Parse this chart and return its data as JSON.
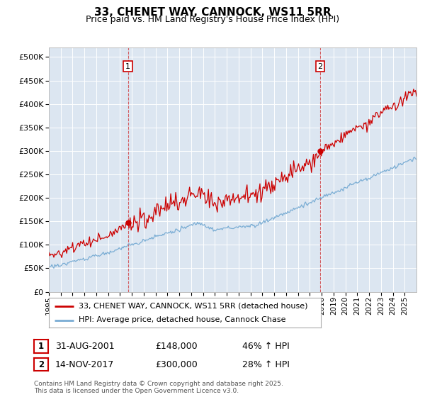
{
  "title": "33, CHENET WAY, CANNOCK, WS11 5RR",
  "subtitle": "Price paid vs. HM Land Registry's House Price Index (HPI)",
  "legend_line1": "33, CHENET WAY, CANNOCK, WS11 5RR (detached house)",
  "legend_line2": "HPI: Average price, detached house, Cannock Chase",
  "annotation1_date": "31-AUG-2001",
  "annotation1_price": "£148,000",
  "annotation1_hpi": "46% ↑ HPI",
  "annotation2_date": "14-NOV-2017",
  "annotation2_price": "£300,000",
  "annotation2_hpi": "28% ↑ HPI",
  "footer": "Contains HM Land Registry data © Crown copyright and database right 2025.\nThis data is licensed under the Open Government Licence v3.0.",
  "property_color": "#cc0000",
  "hpi_color": "#7aadd4",
  "fig_bg_color": "#ffffff",
  "plot_bg_color": "#dce6f1",
  "ylim": [
    0,
    520000
  ],
  "yticks": [
    0,
    50000,
    100000,
    150000,
    200000,
    250000,
    300000,
    350000,
    400000,
    450000,
    500000
  ],
  "xstart_year": 1995,
  "xend_year": 2026,
  "t_buy1": 2001.667,
  "t_buy2": 2017.875,
  "price_at_buy1": 148000,
  "price_at_buy2": 300000,
  "hpi_at_buy1": 101408,
  "hpi_at_buy2": 234375
}
